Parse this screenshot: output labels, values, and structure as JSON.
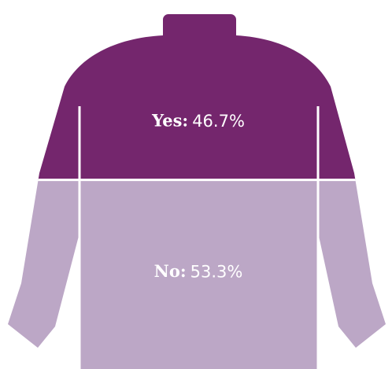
{
  "chart_data": {
    "type": "pictorial",
    "categories": [
      "Yes:",
      "No:"
    ],
    "values": [
      46.7,
      53.3
    ],
    "value_labels": [
      "46.7%",
      "53.3%"
    ],
    "colors": [
      "#74266d",
      "#bca7c6"
    ]
  }
}
